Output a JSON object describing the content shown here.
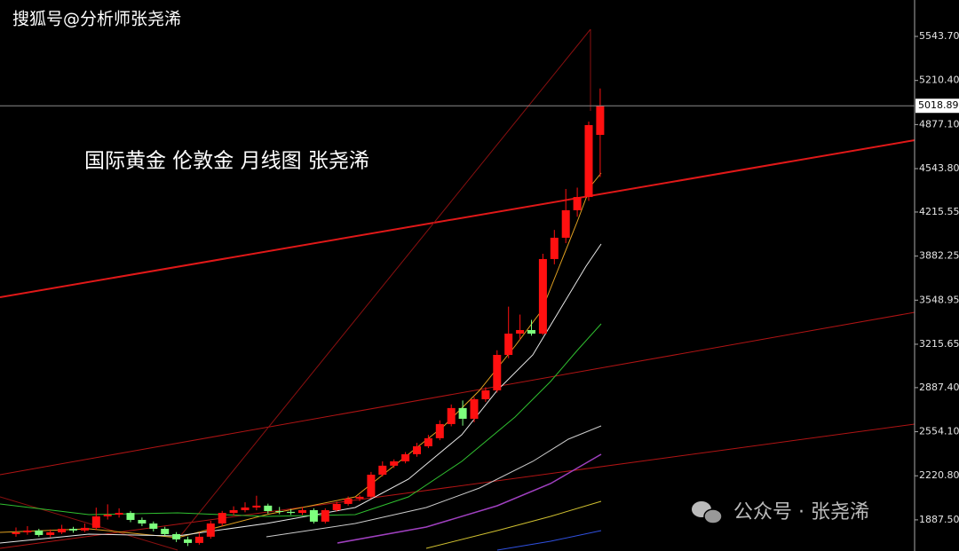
{
  "chart_data": {
    "type": "candlestick",
    "title": "国际黄金 伦敦金  月线图 张尧浠",
    "watermark": "搜狐号@分析师张尧浠",
    "footer_watermark": "公众号 · 张尧浠",
    "up_color": "#ff1010",
    "down_color": "#7dff7d",
    "open": [
      1780,
      1793,
      1807,
      1773,
      1793,
      1820,
      1807,
      1827,
      1914,
      1927,
      1940,
      1887,
      1860,
      1820,
      1780,
      1740,
      1713,
      1760,
      1860,
      1940,
      1961,
      1981,
      1995,
      1954,
      1948,
      1940,
      1961,
      1874,
      1961,
      2008,
      2048,
      2062,
      2229,
      2297,
      2330,
      2384,
      2444,
      2505,
      2612,
      2733,
      2652,
      2800,
      2867,
      3135,
      3296,
      3323,
      3296,
      3860,
      4021,
      4229,
      4329,
      4799
    ],
    "high": [
      1830,
      1840,
      1820,
      1815,
      1850,
      1835,
      1860,
      1980,
      2005,
      1975,
      1955,
      1905,
      1875,
      1835,
      1795,
      1760,
      1790,
      1880,
      1955,
      1990,
      2020,
      2070,
      2010,
      1985,
      1970,
      1985,
      1975,
      1975,
      2025,
      2065,
      2075,
      2250,
      2330,
      2345,
      2400,
      2470,
      2530,
      2640,
      2760,
      2790,
      2815,
      2890,
      3170,
      3500,
      3440,
      3400,
      3900,
      4080,
      4390,
      4400,
      4900,
      5150
    ],
    "low": [
      1760,
      1775,
      1760,
      1755,
      1780,
      1790,
      1795,
      1810,
      1890,
      1905,
      1870,
      1840,
      1800,
      1765,
      1720,
      1690,
      1700,
      1745,
      1840,
      1920,
      1945,
      1960,
      1935,
      1930,
      1925,
      1925,
      1860,
      1860,
      1950,
      1995,
      2030,
      2050,
      2215,
      2280,
      2315,
      2365,
      2430,
      2490,
      2595,
      2600,
      2625,
      2780,
      2850,
      3110,
      3250,
      3280,
      3285,
      3820,
      3980,
      4180,
      4300,
      4480
    ],
    "close": [
      1793,
      1807,
      1773,
      1793,
      1820,
      1807,
      1827,
      1914,
      1927,
      1940,
      1887,
      1860,
      1820,
      1780,
      1740,
      1713,
      1760,
      1860,
      1940,
      1961,
      1981,
      1995,
      1954,
      1948,
      1940,
      1961,
      1874,
      1961,
      2008,
      2048,
      2062,
      2229,
      2297,
      2330,
      2384,
      2444,
      2505,
      2612,
      2733,
      2652,
      2800,
      2867,
      3135,
      3296,
      3323,
      3296,
      3860,
      4021,
      4229,
      4329,
      4873,
      5019
    ],
    "current_price": {
      "value": 5018.89,
      "label": "5018.89"
    },
    "ylim": [
      1652,
      5819
    ],
    "yticks": [
      {
        "value": 5543.7,
        "label": "5543.70"
      },
      {
        "value": 5210.4,
        "label": "5210.40"
      },
      {
        "value": 4877.1,
        "label": "4877.10"
      },
      {
        "value": 4543.8,
        "label": "4543.80"
      },
      {
        "value": 4215.55,
        "label": "4215.55"
      },
      {
        "value": 3882.25,
        "label": "3882.25"
      },
      {
        "value": 3548.95,
        "label": "3548.95"
      },
      {
        "value": 3215.65,
        "label": "3215.65"
      },
      {
        "value": 2887.4,
        "label": "2887.40"
      },
      {
        "value": 2554.1,
        "label": "2554.10"
      },
      {
        "value": 2220.8,
        "label": "2220.80"
      },
      {
        "value": 1887.5,
        "label": "1887.50"
      }
    ]
  }
}
